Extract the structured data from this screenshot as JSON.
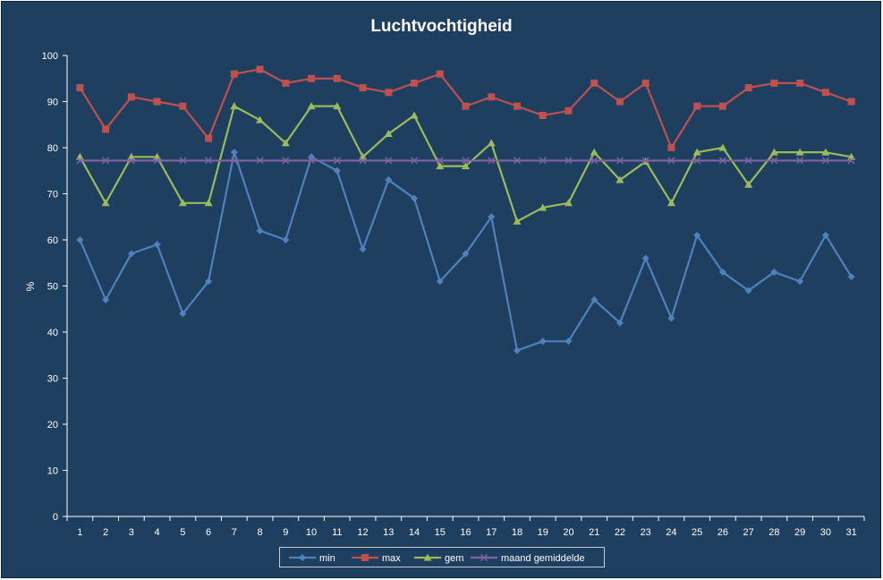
{
  "chart_data": {
    "type": "line",
    "title": "Luchtvochtigheid",
    "xlabel": "",
    "ylabel": "%",
    "ylim": [
      0,
      100
    ],
    "yticks": [
      0,
      10,
      20,
      30,
      40,
      50,
      60,
      70,
      80,
      90,
      100
    ],
    "categories": [
      "1",
      "2",
      "3",
      "4",
      "5",
      "6",
      "7",
      "8",
      "9",
      "10",
      "11",
      "12",
      "13",
      "14",
      "15",
      "16",
      "17",
      "18",
      "19",
      "20",
      "21",
      "22",
      "23",
      "24",
      "25",
      "26",
      "27",
      "28",
      "29",
      "30",
      "31"
    ],
    "grid": false,
    "legend": "bottom",
    "series": [
      {
        "name": "min",
        "color": "#4F81BD",
        "marker": "diamond",
        "values": [
          60,
          47,
          57,
          59,
          44,
          51,
          79,
          62,
          60,
          78,
          75,
          58,
          73,
          69,
          51,
          57,
          65,
          36,
          38,
          38,
          47,
          42,
          56,
          43,
          61,
          53,
          49,
          53,
          51,
          61,
          52
        ]
      },
      {
        "name": "max",
        "color": "#C0504D",
        "marker": "square",
        "values": [
          93,
          84,
          91,
          90,
          89,
          82,
          96,
          97,
          94,
          95,
          95,
          93,
          92,
          94,
          96,
          89,
          91,
          89,
          87,
          88,
          94,
          90,
          94,
          80,
          89,
          89,
          93,
          94,
          94,
          92,
          90
        ]
      },
      {
        "name": "gem",
        "color": "#9BBB59",
        "marker": "triangle",
        "values": [
          78,
          68,
          78,
          78,
          68,
          68,
          89,
          86,
          81,
          89,
          89,
          78,
          83,
          87,
          76,
          76,
          81,
          64,
          67,
          68,
          79,
          73,
          77,
          68,
          79,
          80,
          72,
          79,
          79,
          79,
          78
        ]
      },
      {
        "name": "maand gemiddelde",
        "color": "#8064A2",
        "marker": "x",
        "values": [
          77.2,
          77.2,
          77.2,
          77.2,
          77.2,
          77.2,
          77.2,
          77.2,
          77.2,
          77.2,
          77.2,
          77.2,
          77.2,
          77.2,
          77.2,
          77.2,
          77.2,
          77.2,
          77.2,
          77.2,
          77.2,
          77.2,
          77.2,
          77.2,
          77.2,
          77.2,
          77.2,
          77.2,
          77.2,
          77.2,
          77.2
        ]
      }
    ]
  }
}
